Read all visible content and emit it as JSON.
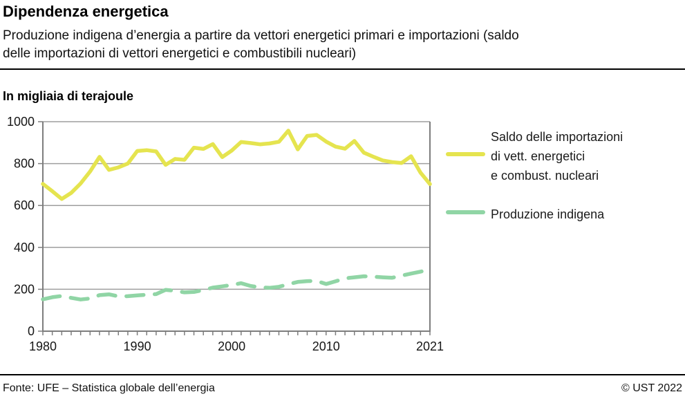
{
  "header": {
    "title": "Dipendenza energetica",
    "subtitle_lines": [
      "Produzione indigena d’energia a partire da vettori energetici primari e importazioni (saldo",
      "delle importazioni di vettori energetici e combustibili nucleari)"
    ]
  },
  "chart_data": {
    "type": "line",
    "title": "Dipendenza energetica",
    "unit_label": "In migliaia di terajoule",
    "xlabel": "",
    "ylabel": "In migliaia di terajoule",
    "ylim": [
      0,
      1000
    ],
    "yticks": [
      0,
      200,
      400,
      600,
      800,
      1000
    ],
    "xlim": [
      1980,
      2021
    ],
    "xtick_labels": [
      1980,
      1990,
      2000,
      2010,
      2021
    ],
    "x_minor_ticks": "every-year",
    "grid": "horizontal",
    "legend_position": "right",
    "x": [
      1980,
      1981,
      1982,
      1983,
      1984,
      1985,
      1986,
      1987,
      1988,
      1989,
      1990,
      1991,
      1992,
      1993,
      1994,
      1995,
      1996,
      1997,
      1998,
      1999,
      2000,
      2001,
      2002,
      2003,
      2004,
      2005,
      2006,
      2007,
      2008,
      2009,
      2010,
      2011,
      2012,
      2013,
      2014,
      2015,
      2016,
      2017,
      2018,
      2019,
      2020,
      2021
    ],
    "series": [
      {
        "name": "Saldo delle importazioni di vett. energetici e combust. nucleari",
        "color": "#e5e44f",
        "style": "solid",
        "values": [
          703,
          668,
          631,
          660,
          705,
          762,
          832,
          770,
          782,
          800,
          860,
          864,
          858,
          794,
          822,
          818,
          876,
          870,
          893,
          831,
          862,
          903,
          898,
          892,
          896,
          904,
          957,
          868,
          932,
          937,
          905,
          881,
          871,
          908,
          852,
          833,
          815,
          807,
          803,
          835,
          757,
          702
        ]
      },
      {
        "name": "Produzione indigena",
        "color": "#90d5a5",
        "style": "dashed",
        "values": [
          152,
          162,
          168,
          159,
          151,
          156,
          172,
          176,
          166,
          167,
          171,
          174,
          177,
          197,
          193,
          185,
          187,
          196,
          208,
          214,
          220,
          229,
          216,
          209,
          207,
          212,
          224,
          235,
          239,
          240,
          225,
          238,
          252,
          257,
          262,
          260,
          257,
          255,
          265,
          275,
          284,
          294
        ]
      }
    ]
  },
  "legend": {
    "items": [
      {
        "label_lines": [
          "Saldo delle importazioni",
          "di vett. energetici",
          "e combust. nucleari"
        ],
        "color": "#e5e44f",
        "style": "solid"
      },
      {
        "label_lines": [
          "Produzione indigena"
        ],
        "color": "#90d5a5",
        "style": "dashed"
      }
    ]
  },
  "footer": {
    "source": "Fonte: UFE – Statistica globale dell’energia",
    "copyright": "© UST 2022"
  },
  "colors": {
    "imports_line": "#e5e44f",
    "production_line": "#90d5a5",
    "gridline": "#9e9e9e",
    "axis_frame": "#7d7d7d",
    "tick_text": "#161616"
  }
}
